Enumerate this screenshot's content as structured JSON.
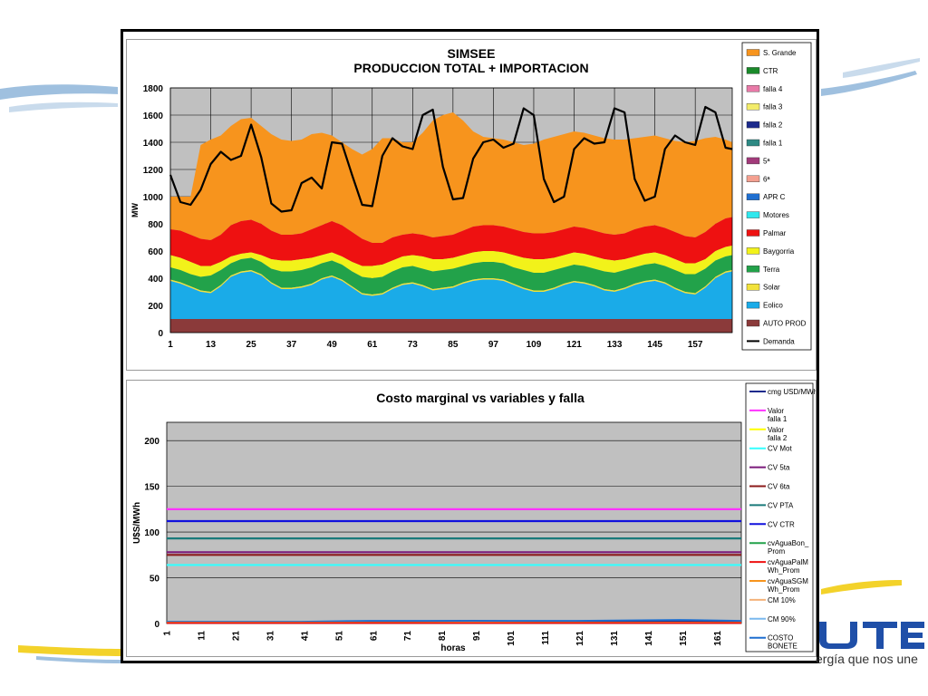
{
  "brand": {
    "logo_text": "UTE",
    "tagline": "ergía que nos une",
    "accent": "#1f4fa8"
  },
  "chart_data": [
    {
      "type": "area",
      "title": "SIMSEE",
      "subtitle": "PRODUCCION TOTAL + IMPORTACION",
      "xlabel": "",
      "ylabel": "MW",
      "ylim": [
        0,
        1800
      ],
      "yticks": [
        0,
        200,
        400,
        600,
        800,
        1000,
        1200,
        1400,
        1600,
        1800
      ],
      "xticks": [
        1,
        13,
        25,
        37,
        49,
        61,
        73,
        85,
        97,
        109,
        121,
        133,
        145,
        157
      ],
      "xrange": [
        1,
        168
      ],
      "grid": true,
      "legend_position": "right",
      "legend": [
        {
          "name": "S. Grande",
          "color": "#f7941d"
        },
        {
          "name": "CTR",
          "color": "#1a8a2a"
        },
        {
          "name": "falla 4",
          "color": "#e87aa8"
        },
        {
          "name": "falla 3",
          "color": "#f3ec6a"
        },
        {
          "name": "falla 2",
          "color": "#1c2a8c"
        },
        {
          "name": "falla 1",
          "color": "#2e8a84"
        },
        {
          "name": "5ª",
          "color": "#a23a7a"
        },
        {
          "name": "6ª",
          "color": "#f4a090"
        },
        {
          "name": "APR C",
          "color": "#1f6fd0"
        },
        {
          "name": "Motores",
          "color": "#2ee8ee"
        },
        {
          "name": "Palmar",
          "color": "#ee1111"
        },
        {
          "name": "Baygorria",
          "color": "#f2f21a"
        },
        {
          "name": "Terra",
          "color": "#22a24a"
        },
        {
          "name": "Solar",
          "color": "#f2e23a"
        },
        {
          "name": "Eolico",
          "color": "#1aabe8"
        },
        {
          "name": "AUTO PROD",
          "color": "#8b3a3a"
        },
        {
          "name": "Demanda",
          "color": "#000000"
        }
      ],
      "series_points": {
        "x": [
          1,
          4,
          7,
          10,
          13,
          16,
          19,
          22,
          25,
          28,
          31,
          34,
          37,
          40,
          43,
          46,
          49,
          52,
          55,
          58,
          61,
          64,
          67,
          70,
          73,
          76,
          79,
          82,
          85,
          88,
          91,
          94,
          97,
          100,
          103,
          106,
          109,
          112,
          115,
          118,
          121,
          124,
          127,
          130,
          133,
          136,
          139,
          142,
          145,
          148,
          151,
          154,
          157,
          160,
          163,
          166,
          168
        ],
        "auto_prod": [
          100,
          100,
          100,
          100,
          100,
          100,
          100,
          100,
          100,
          100,
          100,
          100,
          100,
          100,
          100,
          100,
          100,
          100,
          100,
          100,
          100,
          100,
          100,
          100,
          100,
          100,
          100,
          100,
          100,
          100,
          100,
          100,
          100,
          100,
          100,
          100,
          100,
          100,
          100,
          100,
          100,
          100,
          100,
          100,
          100,
          100,
          100,
          100,
          100,
          100,
          100,
          100,
          100,
          100,
          100,
          100,
          100
        ],
        "eolico_top": [
          380,
          360,
          330,
          300,
          290,
          340,
          410,
          440,
          450,
          420,
          360,
          320,
          320,
          330,
          350,
          390,
          410,
          380,
          330,
          280,
          270,
          280,
          320,
          350,
          360,
          340,
          310,
          320,
          330,
          360,
          380,
          390,
          390,
          380,
          350,
          320,
          300,
          300,
          320,
          350,
          370,
          360,
          340,
          310,
          300,
          320,
          350,
          370,
          380,
          360,
          320,
          290,
          280,
          330,
          400,
          440,
          450
        ],
        "solar_top": [
          390,
          370,
          340,
          310,
          300,
          350,
          420,
          450,
          460,
          430,
          370,
          330,
          330,
          340,
          360,
          400,
          420,
          390,
          340,
          290,
          280,
          290,
          330,
          360,
          370,
          350,
          320,
          330,
          340,
          370,
          390,
          400,
          400,
          390,
          360,
          330,
          310,
          310,
          330,
          360,
          380,
          370,
          350,
          320,
          310,
          330,
          360,
          380,
          390,
          370,
          330,
          300,
          290,
          340,
          410,
          450,
          460
        ],
        "terra_top": [
          480,
          460,
          430,
          410,
          420,
          460,
          510,
          540,
          550,
          520,
          470,
          450,
          450,
          460,
          480,
          510,
          530,
          500,
          450,
          410,
          400,
          410,
          450,
          480,
          490,
          470,
          450,
          460,
          470,
          490,
          510,
          520,
          520,
          510,
          480,
          460,
          440,
          440,
          460,
          480,
          500,
          490,
          470,
          450,
          440,
          460,
          480,
          500,
          510,
          490,
          460,
          430,
          430,
          470,
          530,
          560,
          570
        ],
        "baygorria_top": [
          570,
          550,
          520,
          490,
          490,
          520,
          560,
          580,
          590,
          570,
          540,
          530,
          530,
          540,
          550,
          570,
          590,
          560,
          520,
          490,
          490,
          500,
          530,
          560,
          570,
          560,
          540,
          540,
          550,
          570,
          590,
          600,
          600,
          590,
          570,
          550,
          540,
          540,
          550,
          570,
          590,
          580,
          560,
          540,
          530,
          540,
          560,
          580,
          590,
          570,
          540,
          510,
          510,
          540,
          600,
          630,
          640
        ],
        "palmar_top": [
          760,
          750,
          720,
          690,
          680,
          720,
          790,
          820,
          830,
          800,
          750,
          720,
          720,
          730,
          760,
          790,
          820,
          790,
          740,
          690,
          660,
          660,
          700,
          720,
          730,
          720,
          700,
          710,
          720,
          750,
          780,
          790,
          790,
          780,
          760,
          740,
          730,
          730,
          740,
          760,
          780,
          770,
          750,
          730,
          720,
          730,
          760,
          780,
          790,
          770,
          740,
          710,
          700,
          740,
          800,
          840,
          850
        ],
        "s_grande_top": [
          1000,
          1000,
          1000,
          1380,
          1420,
          1450,
          1520,
          1570,
          1580,
          1520,
          1460,
          1420,
          1410,
          1420,
          1460,
          1470,
          1450,
          1400,
          1350,
          1310,
          1350,
          1430,
          1430,
          1400,
          1400,
          1470,
          1560,
          1600,
          1620,
          1560,
          1480,
          1440,
          1430,
          1420,
          1400,
          1380,
          1390,
          1420,
          1440,
          1460,
          1480,
          1470,
          1450,
          1430,
          1420,
          1420,
          1430,
          1440,
          1450,
          1430,
          1410,
          1400,
          1410,
          1430,
          1440,
          1420,
          1400
        ],
        "demanda": [
          1160,
          960,
          940,
          1050,
          1240,
          1330,
          1270,
          1300,
          1530,
          1290,
          950,
          890,
          900,
          1100,
          1140,
          1060,
          1400,
          1390,
          1160,
          940,
          930,
          1300,
          1430,
          1370,
          1350,
          1600,
          1640,
          1220,
          980,
          990,
          1280,
          1400,
          1420,
          1360,
          1390,
          1650,
          1600,
          1130,
          960,
          1000,
          1350,
          1430,
          1390,
          1400,
          1650,
          1620,
          1130,
          970,
          1000,
          1350,
          1450,
          1400,
          1380,
          1660,
          1620,
          1360,
          1350
        ]
      }
    },
    {
      "type": "line",
      "title": "Costo marginal  vs variables y falla",
      "xlabel": "horas",
      "ylabel": "U$S/MWh",
      "ylim": [
        0,
        220
      ],
      "yticks": [
        0,
        50,
        100,
        150,
        200
      ],
      "xticks": [
        1,
        11,
        21,
        31,
        41,
        51,
        61,
        71,
        81,
        91,
        101,
        111,
        121,
        131,
        141,
        151,
        161
      ],
      "xrange": [
        1,
        168
      ],
      "grid": true,
      "legend_position": "right",
      "legend": [
        {
          "name": "cmg USD/MWh",
          "color": "#1c2a8c"
        },
        {
          "name": "Valor falla 1",
          "color": "#ff33ff"
        },
        {
          "name": "Valor falla 2",
          "color": "#ffff00"
        },
        {
          "name": "CV Mot",
          "color": "#33ffff"
        },
        {
          "name": "CV 5ta",
          "color": "#7a1a7a"
        },
        {
          "name": "CV 6ta",
          "color": "#8b1a1a"
        },
        {
          "name": "CV PTA",
          "color": "#1a7a7a"
        },
        {
          "name": "CV CTR",
          "color": "#1111dd"
        },
        {
          "name": "cvAguaBon_ Prom",
          "color": "#22a24a"
        },
        {
          "name": "cvAguaPalM Wh_Prom",
          "color": "#ee1111"
        },
        {
          "name": "cvAguaSGM Wh_Prom",
          "color": "#f7941d"
        },
        {
          "name": "CM 10%",
          "color": "#f4b27a"
        },
        {
          "name": "CM 90%",
          "color": "#7ab8ee"
        },
        {
          "name": "COSTO BONETE",
          "color": "#1f6fd0"
        }
      ],
      "constant_lines": [
        {
          "name": "Valor falla 1",
          "value": 125,
          "color": "#ff33ff"
        },
        {
          "name": "CV CTR",
          "value": 112,
          "color": "#1111dd"
        },
        {
          "name": "CV PTA",
          "value": 93,
          "color": "#1a7a7a"
        },
        {
          "name": "CV 5ta",
          "value": 78,
          "color": "#7a1a7a"
        },
        {
          "name": "CV 6ta",
          "value": 75,
          "color": "#8b1a1a"
        },
        {
          "name": "CV Mot",
          "value": 64,
          "color": "#33ffff"
        }
      ],
      "low_series": [
        {
          "name": "cmg USD/MWh",
          "color": "#1c2a8c",
          "x": [
            1,
            40,
            60,
            90,
            120,
            150,
            168
          ],
          "values": [
            1,
            1,
            2,
            3,
            2,
            3,
            2
          ]
        },
        {
          "name": "COSTO BONETE",
          "color": "#1f6fd0",
          "x": [
            1,
            40,
            60,
            90,
            120,
            150,
            168
          ],
          "values": [
            2,
            2,
            3,
            3,
            3,
            4,
            3
          ]
        },
        {
          "name": "cvAguaSGM Wh_Prom",
          "color": "#f7941d",
          "x": [
            1,
            168
          ],
          "values": [
            1,
            1
          ]
        },
        {
          "name": "cvAguaPalM Wh_Prom",
          "color": "#ee1111",
          "x": [
            1,
            168
          ],
          "values": [
            0.5,
            0.5
          ]
        }
      ]
    }
  ]
}
